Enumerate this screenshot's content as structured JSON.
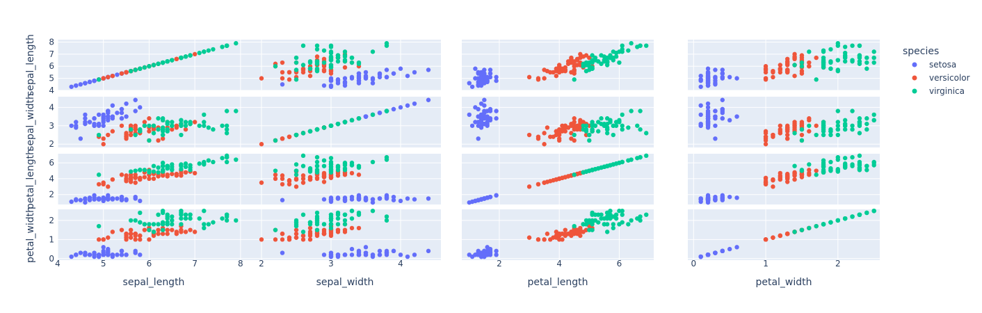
{
  "chart_data": {
    "type": "scatter",
    "subtype": "scatter-matrix",
    "dimensions": [
      "sepal_length",
      "sepal_width",
      "petal_length",
      "petal_width"
    ],
    "legend": {
      "title": "species",
      "position": "top-right"
    },
    "grid": true,
    "series": [
      {
        "name": "setosa",
        "color": "#636efa",
        "points": [
          [
            5.1,
            3.5,
            1.4,
            0.2
          ],
          [
            4.9,
            3.0,
            1.4,
            0.2
          ],
          [
            4.7,
            3.2,
            1.3,
            0.2
          ],
          [
            4.6,
            3.1,
            1.5,
            0.2
          ],
          [
            5.0,
            3.6,
            1.4,
            0.2
          ],
          [
            5.4,
            3.9,
            1.7,
            0.4
          ],
          [
            4.6,
            3.4,
            1.4,
            0.3
          ],
          [
            5.0,
            3.4,
            1.5,
            0.2
          ],
          [
            4.4,
            2.9,
            1.4,
            0.2
          ],
          [
            4.9,
            3.1,
            1.5,
            0.1
          ],
          [
            5.4,
            3.7,
            1.5,
            0.2
          ],
          [
            4.8,
            3.4,
            1.6,
            0.2
          ],
          [
            4.8,
            3.0,
            1.4,
            0.1
          ],
          [
            4.3,
            3.0,
            1.1,
            0.1
          ],
          [
            5.8,
            4.0,
            1.2,
            0.2
          ],
          [
            5.7,
            4.4,
            1.5,
            0.4
          ],
          [
            5.4,
            3.9,
            1.3,
            0.4
          ],
          [
            5.1,
            3.5,
            1.4,
            0.3
          ],
          [
            5.7,
            3.8,
            1.7,
            0.3
          ],
          [
            5.1,
            3.8,
            1.5,
            0.3
          ],
          [
            5.4,
            3.4,
            1.7,
            0.2
          ],
          [
            5.1,
            3.7,
            1.5,
            0.4
          ],
          [
            4.6,
            3.6,
            1.0,
            0.2
          ],
          [
            5.1,
            3.3,
            1.7,
            0.5
          ],
          [
            4.8,
            3.4,
            1.9,
            0.2
          ],
          [
            5.0,
            3.0,
            1.6,
            0.2
          ],
          [
            5.0,
            3.4,
            1.6,
            0.4
          ],
          [
            5.2,
            3.5,
            1.5,
            0.2
          ],
          [
            5.2,
            3.4,
            1.4,
            0.2
          ],
          [
            4.7,
            3.2,
            1.6,
            0.2
          ],
          [
            4.8,
            3.1,
            1.6,
            0.2
          ],
          [
            5.4,
            3.4,
            1.5,
            0.4
          ],
          [
            5.2,
            4.1,
            1.5,
            0.1
          ],
          [
            5.5,
            4.2,
            1.4,
            0.2
          ],
          [
            4.9,
            3.1,
            1.5,
            0.2
          ],
          [
            5.0,
            3.2,
            1.2,
            0.2
          ],
          [
            5.5,
            3.5,
            1.3,
            0.2
          ],
          [
            4.9,
            3.6,
            1.4,
            0.1
          ],
          [
            4.4,
            3.0,
            1.3,
            0.2
          ],
          [
            5.1,
            3.4,
            1.5,
            0.2
          ],
          [
            5.0,
            3.5,
            1.3,
            0.3
          ],
          [
            4.5,
            2.3,
            1.3,
            0.3
          ],
          [
            4.4,
            3.2,
            1.3,
            0.2
          ],
          [
            5.0,
            3.5,
            1.6,
            0.6
          ],
          [
            5.1,
            3.8,
            1.9,
            0.4
          ],
          [
            4.8,
            3.0,
            1.4,
            0.3
          ],
          [
            5.1,
            3.8,
            1.6,
            0.2
          ],
          [
            4.6,
            3.2,
            1.4,
            0.2
          ],
          [
            5.3,
            3.7,
            1.5,
            0.2
          ],
          [
            5.0,
            3.3,
            1.4,
            0.2
          ]
        ]
      },
      {
        "name": "versicolor",
        "color": "#ef553b",
        "points": [
          [
            7.0,
            3.2,
            4.7,
            1.4
          ],
          [
            6.4,
            3.2,
            4.5,
            1.5
          ],
          [
            6.9,
            3.1,
            4.9,
            1.5
          ],
          [
            5.5,
            2.3,
            4.0,
            1.3
          ],
          [
            6.5,
            2.8,
            4.6,
            1.5
          ],
          [
            5.7,
            2.8,
            4.5,
            1.3
          ],
          [
            6.3,
            3.3,
            4.7,
            1.6
          ],
          [
            4.9,
            2.4,
            3.3,
            1.0
          ],
          [
            6.6,
            2.9,
            4.6,
            1.3
          ],
          [
            5.2,
            2.7,
            3.9,
            1.4
          ],
          [
            5.0,
            2.0,
            3.5,
            1.0
          ],
          [
            5.9,
            3.0,
            4.2,
            1.5
          ],
          [
            6.0,
            2.2,
            4.0,
            1.0
          ],
          [
            6.1,
            2.9,
            4.7,
            1.4
          ],
          [
            5.6,
            2.9,
            3.6,
            1.3
          ],
          [
            6.7,
            3.1,
            4.4,
            1.4
          ],
          [
            5.6,
            3.0,
            4.5,
            1.5
          ],
          [
            5.8,
            2.7,
            4.1,
            1.0
          ],
          [
            6.2,
            2.2,
            4.5,
            1.5
          ],
          [
            5.6,
            2.5,
            3.9,
            1.1
          ],
          [
            5.9,
            3.2,
            4.8,
            1.8
          ],
          [
            6.1,
            2.8,
            4.0,
            1.3
          ],
          [
            6.3,
            2.5,
            4.9,
            1.5
          ],
          [
            6.1,
            2.8,
            4.7,
            1.2
          ],
          [
            6.4,
            2.9,
            4.3,
            1.3
          ],
          [
            6.6,
            3.0,
            4.4,
            1.4
          ],
          [
            6.8,
            2.8,
            4.8,
            1.4
          ],
          [
            6.7,
            3.0,
            5.0,
            1.7
          ],
          [
            6.0,
            2.9,
            4.5,
            1.5
          ],
          [
            5.7,
            2.6,
            3.5,
            1.0
          ],
          [
            5.5,
            2.4,
            3.8,
            1.1
          ],
          [
            5.5,
            2.4,
            3.7,
            1.0
          ],
          [
            5.8,
            2.7,
            3.9,
            1.2
          ],
          [
            6.0,
            2.7,
            5.1,
            1.6
          ],
          [
            5.4,
            3.0,
            4.5,
            1.5
          ],
          [
            6.0,
            3.4,
            4.5,
            1.6
          ],
          [
            6.7,
            3.1,
            4.7,
            1.5
          ],
          [
            6.3,
            2.3,
            4.4,
            1.3
          ],
          [
            5.6,
            3.0,
            4.1,
            1.3
          ],
          [
            5.5,
            2.5,
            4.0,
            1.3
          ],
          [
            5.5,
            2.6,
            4.4,
            1.2
          ],
          [
            6.1,
            3.0,
            4.6,
            1.4
          ],
          [
            5.8,
            2.6,
            4.0,
            1.2
          ],
          [
            5.0,
            2.3,
            3.3,
            1.0
          ],
          [
            5.6,
            2.7,
            4.2,
            1.3
          ],
          [
            5.7,
            3.0,
            4.2,
            1.2
          ],
          [
            5.7,
            2.9,
            4.2,
            1.3
          ],
          [
            6.2,
            2.9,
            4.3,
            1.3
          ],
          [
            5.1,
            2.5,
            3.0,
            1.1
          ],
          [
            5.7,
            2.8,
            4.1,
            1.3
          ]
        ]
      },
      {
        "name": "virginica",
        "color": "#00cc96",
        "points": [
          [
            6.3,
            3.3,
            6.0,
            2.5
          ],
          [
            5.8,
            2.7,
            5.1,
            1.9
          ],
          [
            7.1,
            3.0,
            5.9,
            2.1
          ],
          [
            6.3,
            2.9,
            5.6,
            1.8
          ],
          [
            6.5,
            3.0,
            5.8,
            2.2
          ],
          [
            7.6,
            3.0,
            6.6,
            2.1
          ],
          [
            4.9,
            2.5,
            4.5,
            1.7
          ],
          [
            7.3,
            2.9,
            6.3,
            1.8
          ],
          [
            6.7,
            2.5,
            5.8,
            1.8
          ],
          [
            7.2,
            3.6,
            6.1,
            2.5
          ],
          [
            6.5,
            3.2,
            5.1,
            2.0
          ],
          [
            6.4,
            2.7,
            5.3,
            1.9
          ],
          [
            6.8,
            3.0,
            5.5,
            2.1
          ],
          [
            5.7,
            2.5,
            5.0,
            2.0
          ],
          [
            5.8,
            2.8,
            5.1,
            2.4
          ],
          [
            6.4,
            3.2,
            5.3,
            2.3
          ],
          [
            6.5,
            3.0,
            5.5,
            1.8
          ],
          [
            7.7,
            3.8,
            6.7,
            2.2
          ],
          [
            7.7,
            2.6,
            6.9,
            2.3
          ],
          [
            6.0,
            2.2,
            5.0,
            1.5
          ],
          [
            6.9,
            3.2,
            5.7,
            2.3
          ],
          [
            5.6,
            2.8,
            4.9,
            2.0
          ],
          [
            7.7,
            2.8,
            6.7,
            2.0
          ],
          [
            6.3,
            2.7,
            4.9,
            1.8
          ],
          [
            6.7,
            3.3,
            5.7,
            2.1
          ],
          [
            7.2,
            3.2,
            6.0,
            1.8
          ],
          [
            6.2,
            2.8,
            4.8,
            1.8
          ],
          [
            6.1,
            3.0,
            4.9,
            1.8
          ],
          [
            6.4,
            2.8,
            5.6,
            2.1
          ],
          [
            7.2,
            3.0,
            5.8,
            1.6
          ],
          [
            7.4,
            2.8,
            6.1,
            1.9
          ],
          [
            7.9,
            3.8,
            6.4,
            2.0
          ],
          [
            6.4,
            2.8,
            5.6,
            2.2
          ],
          [
            6.3,
            2.8,
            5.1,
            1.5
          ],
          [
            6.1,
            2.6,
            5.6,
            1.4
          ],
          [
            7.7,
            3.0,
            6.1,
            2.3
          ],
          [
            6.3,
            3.4,
            5.6,
            2.4
          ],
          [
            6.4,
            3.1,
            5.5,
            1.8
          ],
          [
            6.0,
            3.0,
            4.8,
            1.8
          ],
          [
            6.9,
            3.1,
            5.4,
            2.1
          ],
          [
            6.7,
            3.1,
            5.6,
            2.4
          ],
          [
            6.9,
            3.1,
            5.1,
            2.3
          ],
          [
            5.8,
            2.7,
            5.1,
            1.9
          ],
          [
            6.8,
            3.2,
            5.9,
            2.3
          ],
          [
            6.7,
            3.3,
            5.7,
            2.5
          ],
          [
            6.7,
            3.0,
            5.2,
            2.3
          ],
          [
            6.3,
            2.5,
            5.0,
            1.9
          ],
          [
            6.5,
            3.0,
            5.2,
            2.0
          ],
          [
            6.2,
            3.4,
            5.4,
            2.3
          ],
          [
            5.9,
            3.0,
            5.1,
            1.8
          ]
        ]
      }
    ],
    "axes": {
      "sepal_length": {
        "range": [
          4.0,
          8.2
        ],
        "ticks": [
          4,
          5,
          6,
          7,
          8
        ],
        "rowTicks": [
          4,
          5,
          6,
          7,
          8
        ]
      },
      "sepal_width": {
        "range": [
          1.82,
          4.58
        ],
        "ticks": [
          2,
          3,
          4
        ],
        "rowTicks": [
          2,
          3,
          4
        ]
      },
      "petal_length": {
        "range": [
          0.75,
          7.15
        ],
        "ticks": [
          2,
          4,
          6
        ],
        "rowTicks": [
          2,
          4,
          6
        ]
      },
      "petal_width": {
        "range": [
          -0.08,
          2.58
        ],
        "ticks": [
          0,
          1,
          2
        ],
        "rowTicks": [
          0,
          1,
          2
        ]
      }
    }
  }
}
